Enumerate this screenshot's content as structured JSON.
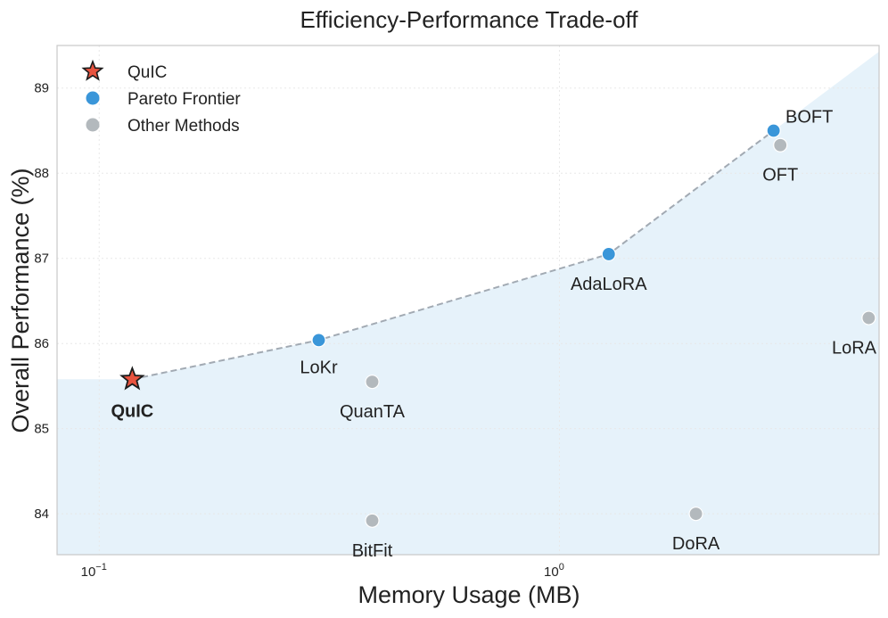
{
  "chart_data": {
    "type": "scatter",
    "title": "Efficiency-Performance Trade-off",
    "xlabel": "Memory Usage (MB)",
    "ylabel": "Overall Performance (%)",
    "x_scale": "log",
    "xlim": [
      0.081,
      4.95
    ],
    "ylim": [
      83.52,
      89.5
    ],
    "x_ticks": [
      {
        "value": 0.1,
        "base": "10",
        "exp": "−1"
      },
      {
        "value": 1,
        "base": "10",
        "exp": "0"
      }
    ],
    "y_ticks": [
      84,
      85,
      86,
      87,
      88,
      89
    ],
    "grid": true,
    "legend_position": "upper-left",
    "legend": [
      {
        "label": "QuIC",
        "marker": "star"
      },
      {
        "label": "Pareto Frontier",
        "marker": "circle-blue"
      },
      {
        "label": "Other Methods",
        "marker": "circle-gray"
      }
    ],
    "points": [
      {
        "name": "QuIC",
        "x": 0.118,
        "y": 85.58,
        "group": "QuIC"
      },
      {
        "name": "LoKr",
        "x": 0.3,
        "y": 86.04,
        "group": "Pareto Frontier"
      },
      {
        "name": "AdaLoRA",
        "x": 1.28,
        "y": 87.05,
        "group": "Pareto Frontier"
      },
      {
        "name": "BOFT",
        "x": 2.92,
        "y": 88.5,
        "group": "Pareto Frontier"
      },
      {
        "name": "OFT",
        "x": 3.02,
        "y": 88.33,
        "group": "Other Methods"
      },
      {
        "name": "LoRA",
        "x": 4.7,
        "y": 86.3,
        "group": "Other Methods"
      },
      {
        "name": "QuanTA",
        "x": 0.392,
        "y": 85.55,
        "group": "Other Methods"
      },
      {
        "name": "BitFit",
        "x": 0.392,
        "y": 83.92,
        "group": "Other Methods"
      },
      {
        "name": "DoRA",
        "x": 1.98,
        "y": 84.0,
        "group": "Other Methods"
      }
    ],
    "frontier": [
      "QuIC",
      "LoKr",
      "AdaLoRA",
      "BOFT"
    ],
    "colors": {
      "quic": "#e8533f",
      "pareto": "#3a96d9",
      "other": "#b3b9bd",
      "frontier_line": "#a2aab3",
      "shade": "#e6f2fa",
      "grid": "#e8e8e8",
      "frame": "#c8c8c8"
    }
  }
}
